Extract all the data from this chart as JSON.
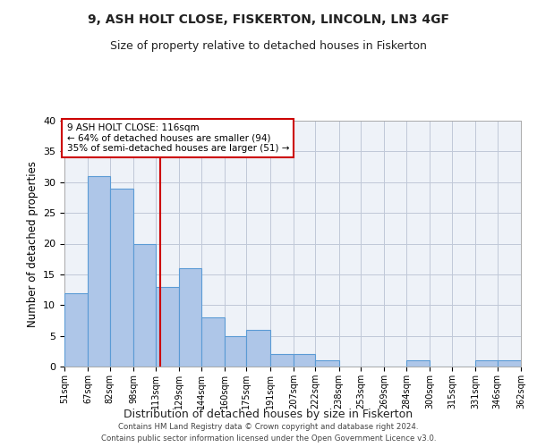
{
  "title": "9, ASH HOLT CLOSE, FISKERTON, LINCOLN, LN3 4GF",
  "subtitle": "Size of property relative to detached houses in Fiskerton",
  "xlabel": "Distribution of detached houses by size in Fiskerton",
  "ylabel": "Number of detached properties",
  "bar_values": [
    12,
    31,
    29,
    20,
    13,
    16,
    8,
    5,
    6,
    2,
    2,
    1,
    0,
    0,
    0,
    1,
    0,
    0,
    1,
    1
  ],
  "bin_edges": [
    51,
    67,
    82,
    98,
    113,
    129,
    144,
    160,
    175,
    191,
    207,
    222,
    238,
    253,
    269,
    284,
    300,
    315,
    331,
    346,
    362
  ],
  "tick_labels": [
    "51sqm",
    "67sqm",
    "82sqm",
    "98sqm",
    "113sqm",
    "129sqm",
    "144sqm",
    "160sqm",
    "175sqm",
    "191sqm",
    "207sqm",
    "222sqm",
    "238sqm",
    "253sqm",
    "269sqm",
    "284sqm",
    "300sqm",
    "315sqm",
    "331sqm",
    "346sqm",
    "362sqm"
  ],
  "bar_color": "#aec6e8",
  "bar_edge_color": "#5b9bd5",
  "property_line_x": 116,
  "property_line_color": "#cc0000",
  "annotation_line1": "9 ASH HOLT CLOSE: 116sqm",
  "annotation_line2": "← 64% of detached houses are smaller (94)",
  "annotation_line3": "35% of semi-detached houses are larger (51) →",
  "annotation_box_color": "#cc0000",
  "ylim": [
    0,
    40
  ],
  "yticks": [
    0,
    5,
    10,
    15,
    20,
    25,
    30,
    35,
    40
  ],
  "grid_color": "#c0c8d8",
  "background_color": "#eef2f8",
  "footer_line1": "Contains HM Land Registry data © Crown copyright and database right 2024.",
  "footer_line2": "Contains public sector information licensed under the Open Government Licence v3.0.",
  "title_fontsize": 10,
  "subtitle_fontsize": 9
}
